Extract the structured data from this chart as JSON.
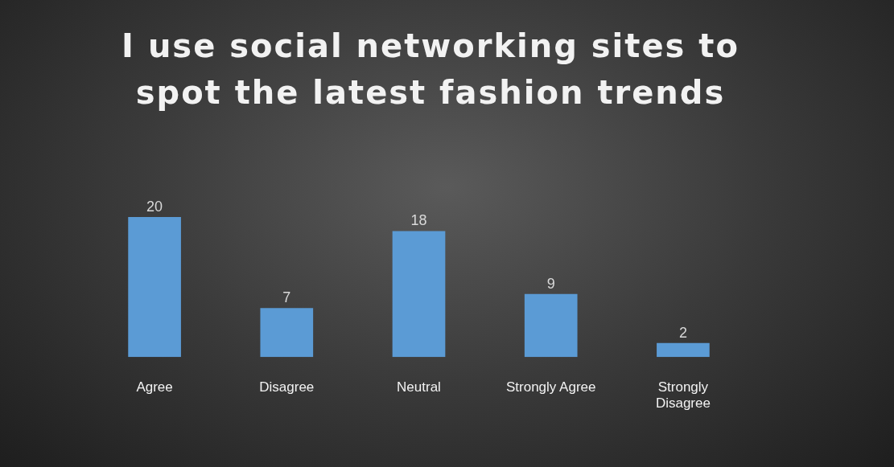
{
  "chart_data": {
    "type": "bar",
    "title": "I use social networking sites to spot the latest fashion trends",
    "categories": [
      "Agree",
      "Disagree",
      "Neutral",
      "Strongly Agree",
      "Strongly Disagree"
    ],
    "values": [
      20,
      7,
      18,
      9,
      2
    ],
    "color": "#5b9bd5",
    "data_labels": true,
    "legend": false,
    "grid": false
  }
}
